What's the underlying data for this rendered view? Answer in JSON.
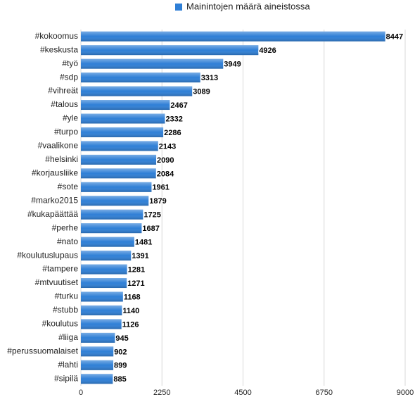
{
  "chart_data": {
    "type": "bar",
    "orientation": "horizontal",
    "legend": "Mainintojen määrä aineistossa",
    "legend_position": "top",
    "color": "#2f7fd6",
    "categories": [
      "#kokoomus",
      "#keskusta",
      "#työ",
      "#sdp",
      "#vihreät",
      "#talous",
      "#yle",
      "#turpo",
      "#vaalikone",
      "#helsinki",
      "#korjausliike",
      "#sote",
      "#marko2015",
      "#kukapäättää",
      "#perhe",
      "#nato",
      "#koulutuslupaus",
      "#tampere",
      "#mtvuutiset",
      "#turku",
      "#stubb",
      "#koulutus",
      "#liiga",
      "#perussuomalaiset",
      "#lahti",
      "#sipilä"
    ],
    "values": [
      8447,
      4926,
      3949,
      3313,
      3089,
      2467,
      2332,
      2286,
      2143,
      2090,
      2084,
      1961,
      1879,
      1725,
      1687,
      1481,
      1391,
      1281,
      1271,
      1168,
      1140,
      1126,
      945,
      902,
      899,
      885
    ],
    "xlim": [
      0,
      9000
    ],
    "xticks": [
      0,
      2250,
      4500,
      6750,
      9000
    ],
    "grid": true
  }
}
